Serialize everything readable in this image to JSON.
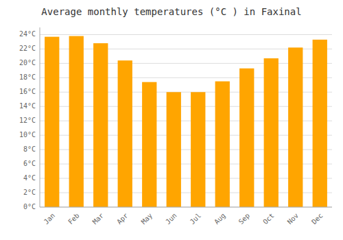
{
  "chart_data": {
    "type": "bar",
    "title": "Average monthly temperatures (°C ) in Faxinal",
    "categories": [
      "Jan",
      "Feb",
      "Mar",
      "Apr",
      "May",
      "Jun",
      "Jul",
      "Aug",
      "Sep",
      "Oct",
      "Nov",
      "Dec"
    ],
    "values": [
      23.7,
      23.8,
      22.8,
      20.4,
      17.4,
      16.0,
      16.0,
      17.5,
      19.3,
      20.7,
      22.2,
      23.3
    ],
    "color": "#FFA500",
    "ylim": [
      0,
      25
    ],
    "yticks": [
      {
        "value": 0,
        "label": "0°C"
      },
      {
        "value": 2,
        "label": "2°C"
      },
      {
        "value": 4,
        "label": "4°C"
      },
      {
        "value": 6,
        "label": "6°C"
      },
      {
        "value": 8,
        "label": "8°C"
      },
      {
        "value": 10,
        "label": "10°C"
      },
      {
        "value": 12,
        "label": "12°C"
      },
      {
        "value": 14,
        "label": "14°C"
      },
      {
        "value": 16,
        "label": "16°C"
      },
      {
        "value": 18,
        "label": "18°C"
      },
      {
        "value": 20,
        "label": "20°C"
      },
      {
        "value": 22,
        "label": "22°C"
      },
      {
        "value": 24,
        "label": "24°C"
      }
    ],
    "grid": true
  }
}
